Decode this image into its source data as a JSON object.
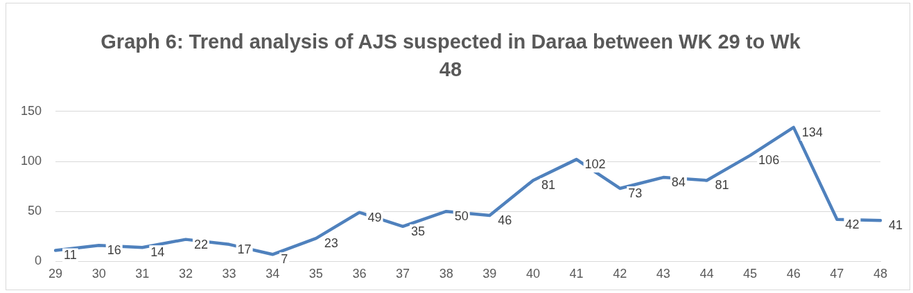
{
  "chart_data": {
    "type": "line",
    "title": "Graph 6: Trend analysis of AJS suspected in Daraa  between WK 29 to Wk 48",
    "categories": [
      "29",
      "30",
      "31",
      "32",
      "33",
      "34",
      "35",
      "36",
      "37",
      "38",
      "39",
      "40",
      "41",
      "42",
      "43",
      "44",
      "45",
      "46",
      "47",
      "48"
    ],
    "series": [
      {
        "color": "#4f81bd",
        "values": [
          11,
          16,
          14,
          22,
          17,
          7,
          23,
          49,
          35,
          50,
          46,
          81,
          102,
          73,
          84,
          81,
          106,
          134,
          42,
          41
        ]
      }
    ],
    "ylim": [
      0,
      150
    ],
    "yticks": [
      0,
      50,
      100,
      150
    ],
    "grid": "y",
    "legend": false,
    "marker": "none",
    "line_style": "solid",
    "data_labels": true
  }
}
